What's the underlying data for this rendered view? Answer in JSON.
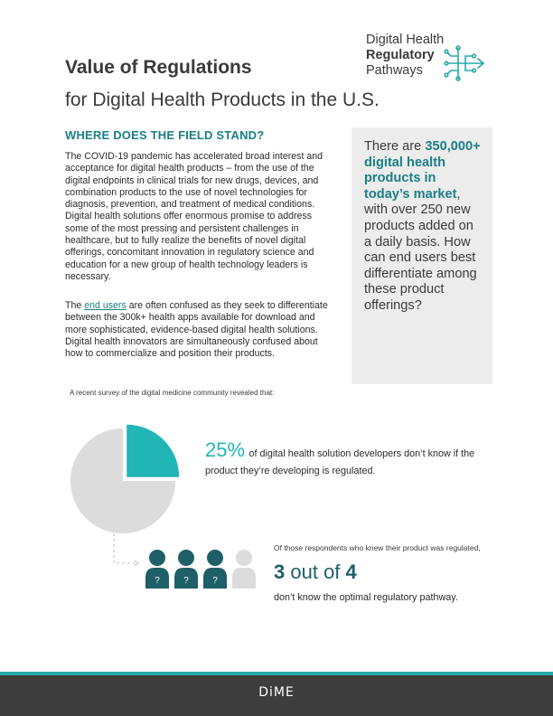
{
  "header": {
    "title": "Value of Regulations",
    "subtitle": "for Digital Health Products in the U.S.",
    "brand": {
      "line1": "Digital Health",
      "line2": "Regulatory",
      "line3": "Pathways",
      "icon": "circuit-arrow-icon"
    }
  },
  "section": {
    "heading": "WHERE DOES THE FIELD STAND?",
    "paragraph1": "The COVID-19 pandemic has accelerated broad interest and acceptance for digital health products – from the use of the digital endpoints in clinical trials for new drugs, devices, and combination products to the use of novel technologies for diagnosis, prevention, and treatment of medical conditions. Digital health solutions offer enormous promise to address some of the most pressing and persistent challenges in healthcare, but to fully realize the benefits of novel digital offerings, concomitant innovation in regulatory science and education for a new group of health technology leaders is necessary.",
    "paragraph2_pre": "The",
    "paragraph2_link": "end users",
    "paragraph2_post": "are often confused as they seek to differentiate between the 300k+ health apps available for download and more sophisticated, evidence-based digital health solutions. Digital health innovators are simultaneously confused about how to commercialize and position their products."
  },
  "callout": {
    "pre": "There are",
    "highlight": "350,000+ digital health products in today’s market",
    "post": ", with over 250 new products added on a daily basis. How can end users best differentiate among these product offerings?"
  },
  "survey": {
    "intro": "A recent survey of the digital medicine community revealed that:",
    "stat1": {
      "value_text": "25%",
      "fraction": 0.25,
      "text": "of digital health solution developers don’t know if the product they’re developing is regulated."
    },
    "stat2": {
      "intro": "Of those respondents who knew their product was regulated,",
      "numerator": "3",
      "connector": "out of",
      "denominator": "4",
      "note": "don’t know the optimal regulatory pathway.",
      "people_unknown": 3,
      "people_total": 4,
      "person_mark": "?"
    }
  },
  "colors": {
    "teal": "#22b5b5",
    "dark_teal": "#1e5f68",
    "heading_teal": "#1a7f86",
    "pie_gray": "#dcdcdc",
    "footer": "#3d3d3d"
  },
  "footer": {
    "logo": "DiME"
  }
}
